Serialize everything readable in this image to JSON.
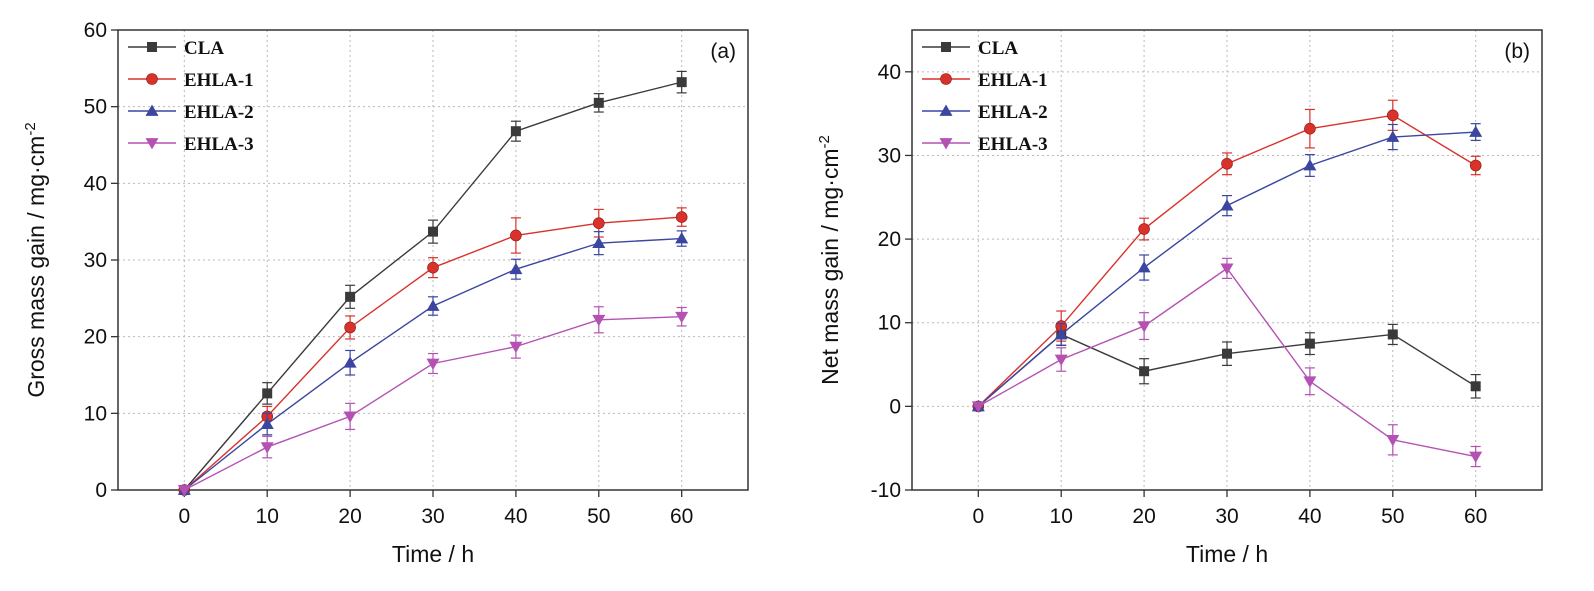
{
  "chart_data": [
    {
      "type": "line",
      "panel_label": "(a)",
      "xlabel": "Time / h",
      "ylabel": "Gross mass gain / mg·cm",
      "ylabel_sup": "-2",
      "x": [
        0,
        10,
        20,
        30,
        40,
        50,
        60
      ],
      "xlim": [
        -8,
        68
      ],
      "ylim": [
        0,
        60
      ],
      "xticks": [
        "0",
        "10",
        "20",
        "30",
        "40",
        "50",
        "60"
      ],
      "yticks": [
        "0",
        "10",
        "20",
        "30",
        "40",
        "50",
        "60"
      ],
      "grid": true,
      "legend_position": "top-left",
      "series": [
        {
          "name": "CLA",
          "color": "#3a3a3a",
          "marker": "square",
          "values": [
            0,
            12.6,
            25.2,
            33.7,
            46.8,
            50.5,
            53.2
          ],
          "errors": [
            0,
            1.4,
            1.5,
            1.5,
            1.3,
            1.2,
            1.4
          ]
        },
        {
          "name": "EHLA-1",
          "color": "#d9322b",
          "marker": "circle",
          "values": [
            0,
            9.6,
            21.2,
            29.0,
            33.2,
            34.8,
            35.6
          ],
          "errors": [
            0,
            1.3,
            1.5,
            1.3,
            2.3,
            1.8,
            1.2
          ]
        },
        {
          "name": "EHLA-2",
          "color": "#3a46a0",
          "marker": "triangle-up",
          "values": [
            0,
            8.6,
            16.6,
            24.0,
            28.8,
            32.2,
            32.8
          ],
          "errors": [
            0,
            1.4,
            1.6,
            1.2,
            1.3,
            1.5,
            1.0
          ]
        },
        {
          "name": "EHLA-3",
          "color": "#b452b4",
          "marker": "triangle-down",
          "values": [
            0,
            5.6,
            9.6,
            16.5,
            18.7,
            22.2,
            22.6
          ],
          "errors": [
            0,
            1.4,
            1.7,
            1.3,
            1.5,
            1.7,
            1.2
          ]
        }
      ]
    },
    {
      "type": "line",
      "panel_label": "(b)",
      "xlabel": "Time / h",
      "ylabel": "Net mass gain / mg·cm",
      "ylabel_sup": "-2",
      "x": [
        0,
        10,
        20,
        30,
        40,
        50,
        60
      ],
      "xlim": [
        -8,
        68
      ],
      "ylim": [
        -10,
        45
      ],
      "xticks": [
        "0",
        "10",
        "20",
        "30",
        "40",
        "50",
        "60"
      ],
      "yticks": [
        "-10",
        "0",
        "10",
        "20",
        "30",
        "40"
      ],
      "grid": true,
      "legend_position": "top-left",
      "series": [
        {
          "name": "CLA",
          "color": "#3a3a3a",
          "marker": "square",
          "values": [
            0,
            8.6,
            4.2,
            6.3,
            7.5,
            8.6,
            2.4
          ],
          "errors": [
            0,
            1.3,
            1.5,
            1.4,
            1.3,
            1.2,
            1.4
          ]
        },
        {
          "name": "EHLA-1",
          "color": "#d9322b",
          "marker": "circle",
          "values": [
            0,
            9.6,
            21.2,
            29.0,
            33.2,
            34.8,
            28.8
          ],
          "errors": [
            0,
            1.8,
            1.3,
            1.3,
            2.3,
            1.8,
            1.1
          ]
        },
        {
          "name": "EHLA-2",
          "color": "#3a46a0",
          "marker": "triangle-up",
          "values": [
            0,
            8.6,
            16.6,
            24.0,
            28.8,
            32.2,
            32.8
          ],
          "errors": [
            0,
            1.3,
            1.5,
            1.2,
            1.3,
            1.5,
            1.0
          ]
        },
        {
          "name": "EHLA-3",
          "color": "#b452b4",
          "marker": "triangle-down",
          "values": [
            0,
            5.6,
            9.6,
            16.5,
            3.0,
            -4.0,
            -6.0
          ],
          "errors": [
            0,
            1.4,
            1.6,
            1.2,
            1.6,
            1.8,
            1.2
          ]
        }
      ]
    }
  ]
}
